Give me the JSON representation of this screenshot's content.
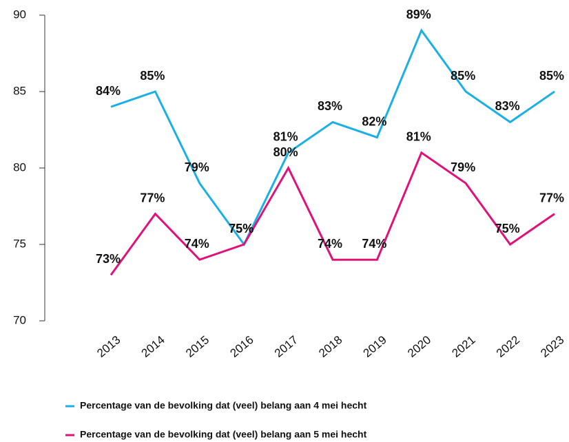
{
  "chart_data": {
    "type": "line",
    "categories": [
      "2013",
      "2014",
      "2015",
      "2016",
      "2017",
      "2018",
      "2019",
      "2020",
      "2021",
      "2022",
      "2023"
    ],
    "series": [
      {
        "name": "Percentage van de bevolking dat (veel) belang aan 4 mei hecht",
        "color": "#1ab0e6",
        "values": [
          84,
          85,
          79,
          75,
          81,
          83,
          82,
          89,
          85,
          83,
          85
        ],
        "value_labels": [
          "84%",
          "85%",
          "79%",
          "75%",
          "81%",
          "83%",
          "82%",
          "89%",
          "85%",
          "83%",
          "85%"
        ]
      },
      {
        "name": "Percentage van de bevolking dat (veel) belang aan 5 mei hecht",
        "color": "#e0127a",
        "values": [
          73,
          77,
          74,
          75,
          80,
          74,
          74,
          81,
          79,
          75,
          77
        ],
        "value_labels": [
          "73%",
          "77%",
          "74%",
          "75%",
          "80%",
          "74%",
          "74%",
          "81%",
          "79%",
          "75%",
          "77%"
        ]
      }
    ],
    "ylim": [
      70,
      90
    ],
    "yticks": [
      70,
      75,
      80,
      85,
      90
    ]
  }
}
